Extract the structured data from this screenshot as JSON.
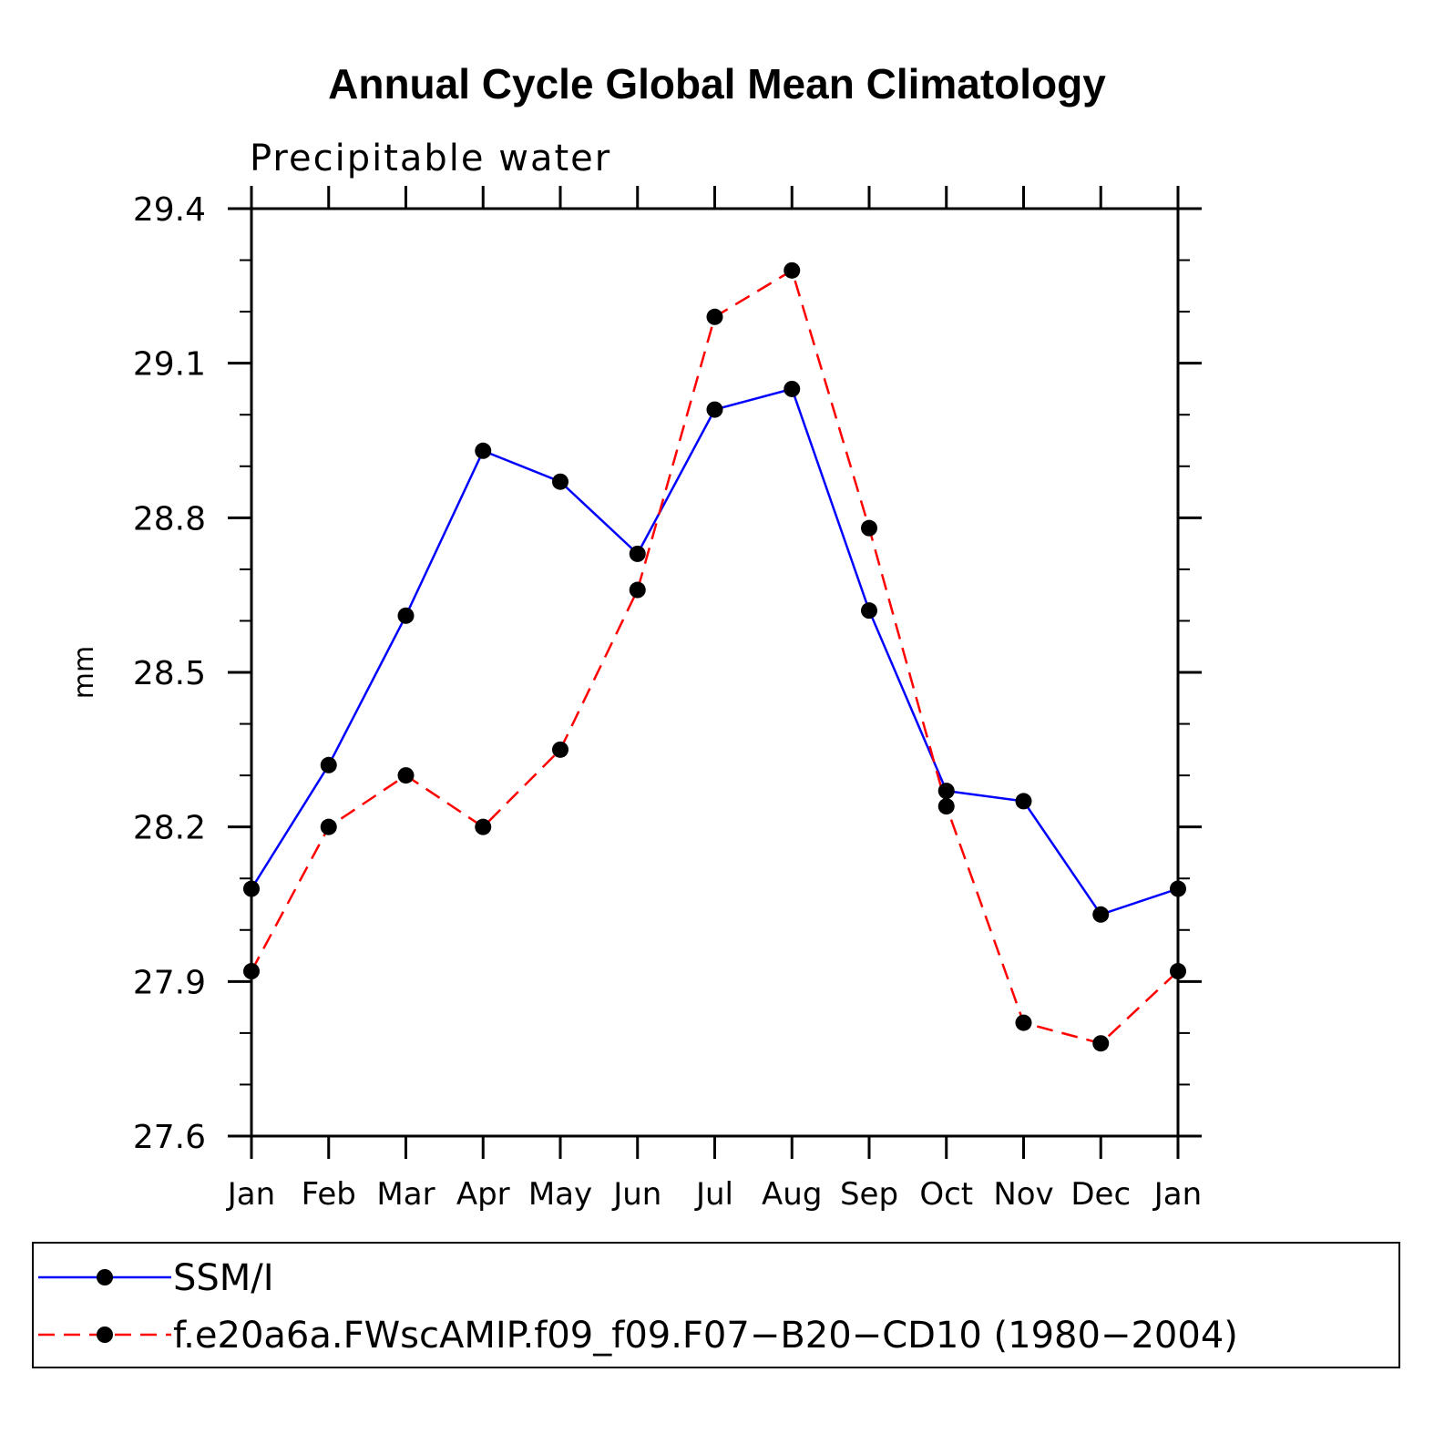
{
  "chart_data": {
    "type": "line",
    "title": "Annual Cycle Global Mean Climatology",
    "subtitle": "Precipitable water",
    "xlabel": "",
    "ylabel": "mm",
    "categories": [
      "Jan",
      "Feb",
      "Mar",
      "Apr",
      "May",
      "Jun",
      "Jul",
      "Aug",
      "Sep",
      "Oct",
      "Nov",
      "Dec",
      "Jan"
    ],
    "ylim": [
      27.6,
      29.4
    ],
    "yticks": [
      "27.6",
      "27.9",
      "28.2",
      "28.5",
      "28.8",
      "29.1",
      "29.4"
    ],
    "ytick_values": [
      27.6,
      27.9,
      28.2,
      28.5,
      28.8,
      29.1,
      29.4
    ],
    "y_minor_step": 0.1,
    "legend_position": "bottom",
    "series": [
      {
        "name": "SSM/I",
        "color": "#0000ff",
        "dash": "solid",
        "marker_color": "#000000",
        "values": [
          28.08,
          28.32,
          28.61,
          28.93,
          28.87,
          28.73,
          29.01,
          29.05,
          28.62,
          28.27,
          28.25,
          28.03,
          28.08
        ]
      },
      {
        "name": "f.e20a6a.FWscAMIP.f09_f09.F07−B20−CD10 (1980−2004)",
        "color": "#ff0000",
        "dash": "dashed",
        "marker_color": "#000000",
        "values": [
          27.92,
          28.2,
          28.3,
          28.2,
          28.35,
          28.66,
          29.19,
          29.28,
          28.78,
          28.24,
          27.82,
          27.78,
          27.92
        ]
      }
    ]
  }
}
